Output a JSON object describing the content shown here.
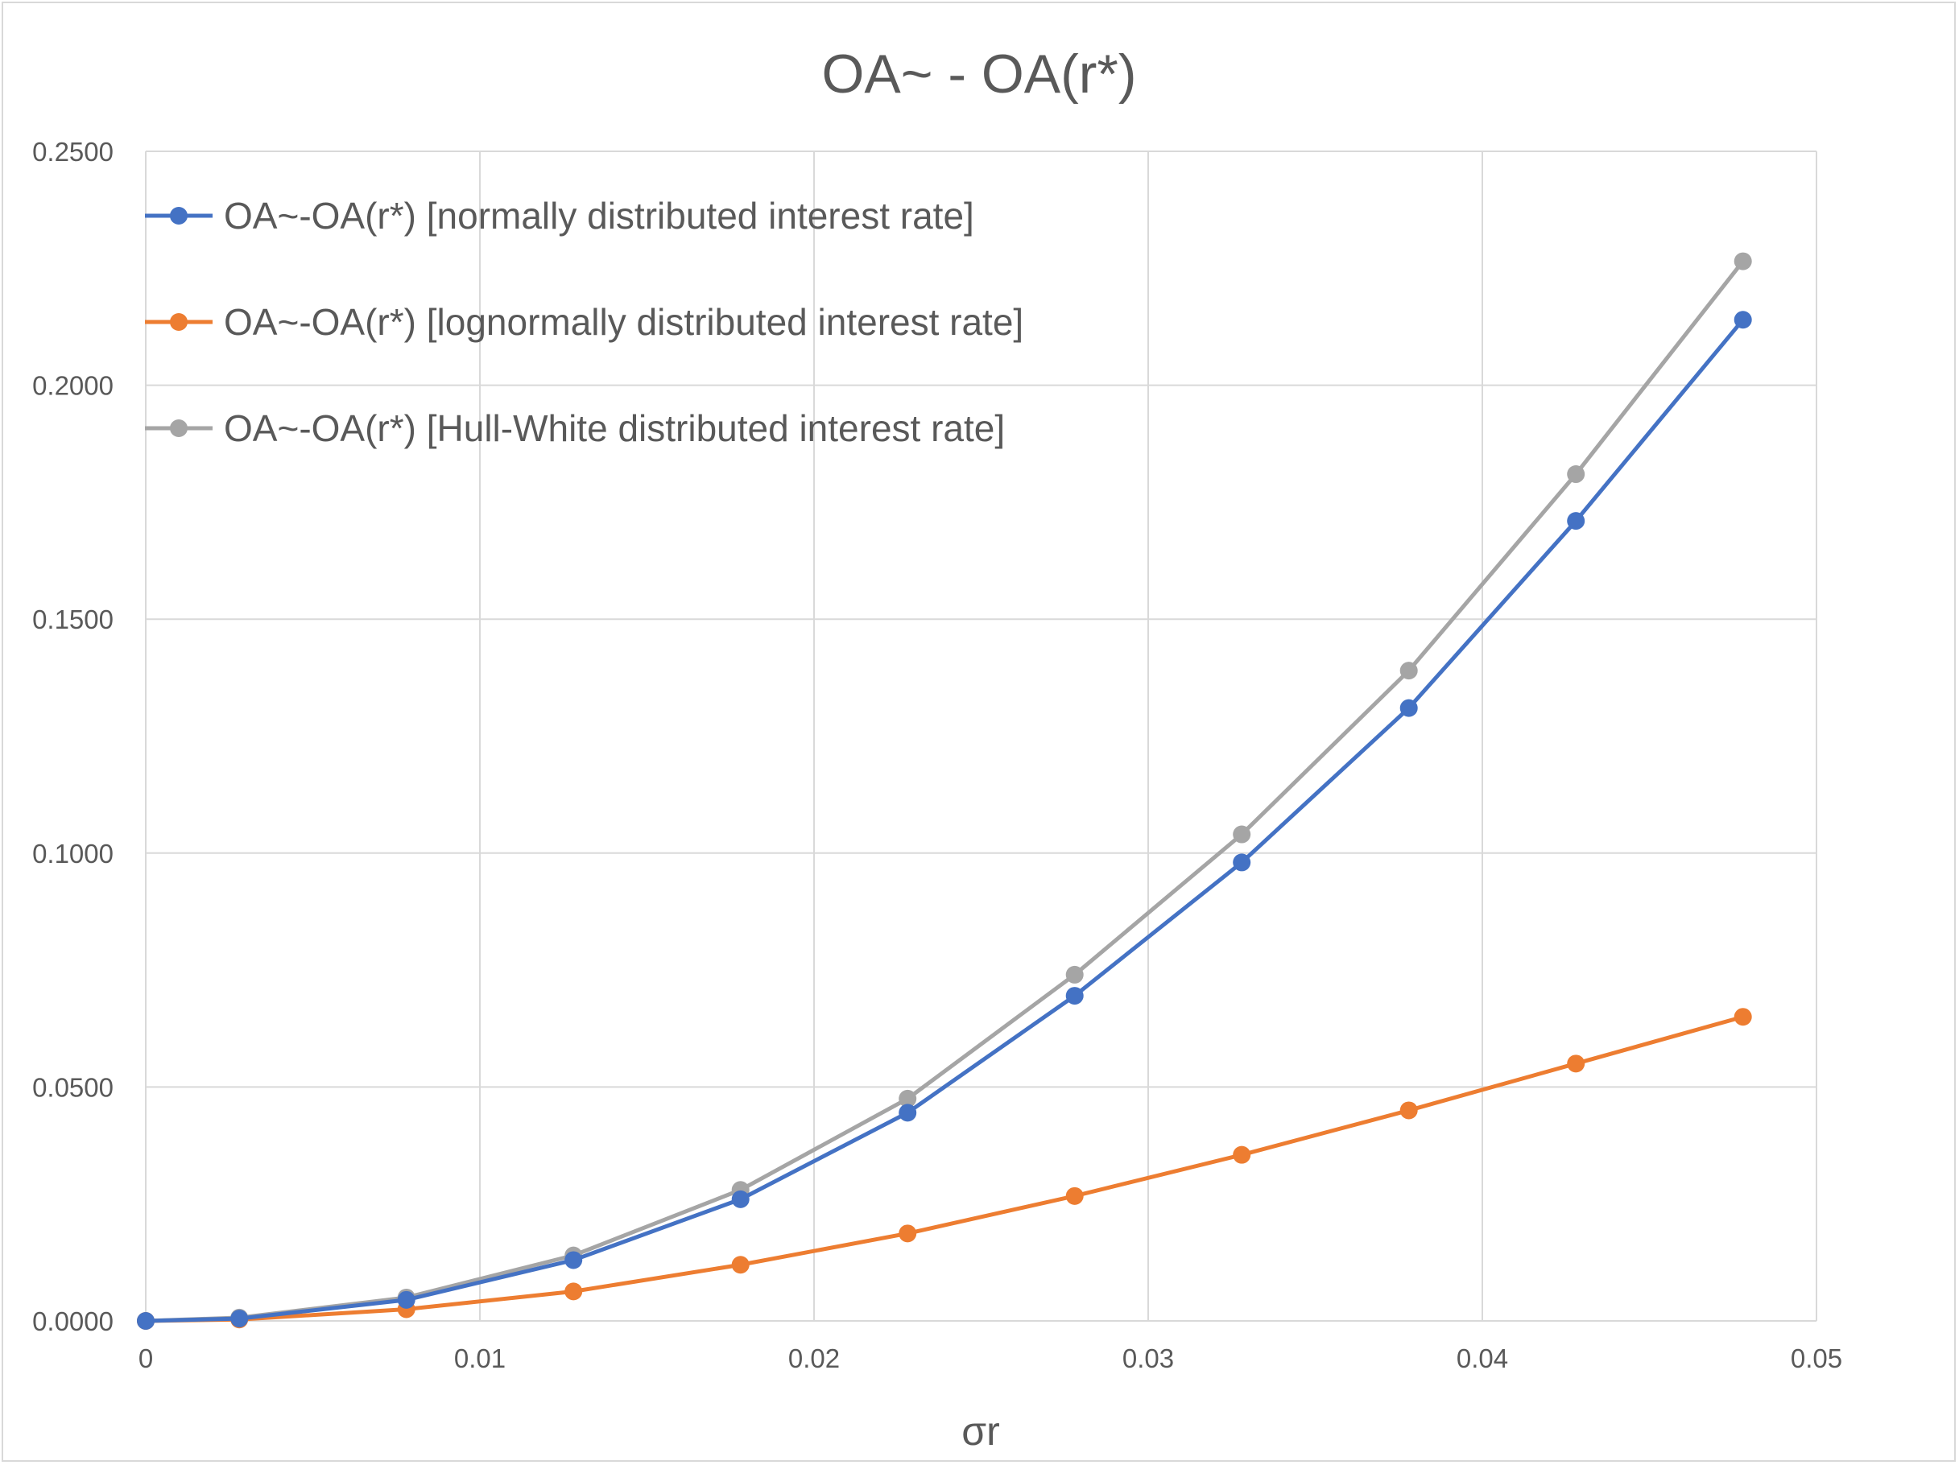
{
  "chart_data": {
    "type": "line",
    "title": "OA~ - OA(r*)",
    "xlabel": "σr",
    "ylabel": "",
    "xlim": [
      0,
      0.05
    ],
    "ylim": [
      0,
      0.25
    ],
    "x_ticks": [
      "0",
      "0.01",
      "0.02",
      "0.03",
      "0.04",
      "0.05"
    ],
    "y_ticks": [
      "0.0000",
      "0.0500",
      "0.1000",
      "0.1500",
      "0.2000",
      "0.2500"
    ],
    "grid": true,
    "legend_position": "top-left",
    "x": [
      0,
      0.0028,
      0.0078,
      0.0128,
      0.0178,
      0.0228,
      0.0278,
      0.0328,
      0.0378,
      0.0428,
      0.0478
    ],
    "series": [
      {
        "name": "OA~-OA(r*) [normally distributed interest rate]",
        "color": "#4472C4",
        "values": [
          0.0,
          0.0005,
          0.0045,
          0.013,
          0.026,
          0.0445,
          0.0695,
          0.098,
          0.131,
          0.171,
          0.214
        ]
      },
      {
        "name": "OA~-OA(r*) [lognormally distributed interest rate]",
        "color": "#ED7D31",
        "values": [
          0.0,
          0.0003,
          0.0025,
          0.0063,
          0.012,
          0.0187,
          0.0267,
          0.0355,
          0.045,
          0.055,
          0.065
        ]
      },
      {
        "name": "OA~-OA(r*) [Hull-White distributed interest rate]",
        "color": "#A5A5A5",
        "values": [
          0.0,
          0.0007,
          0.005,
          0.014,
          0.028,
          0.0475,
          0.074,
          0.104,
          0.139,
          0.181,
          0.2265
        ]
      }
    ]
  }
}
